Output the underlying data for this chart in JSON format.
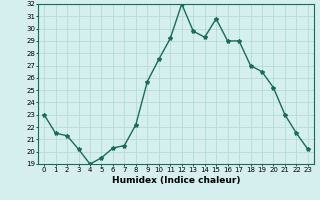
{
  "x": [
    0,
    1,
    2,
    3,
    4,
    5,
    6,
    7,
    8,
    9,
    10,
    11,
    12,
    13,
    14,
    15,
    16,
    17,
    18,
    19,
    20,
    21,
    22,
    23
  ],
  "y": [
    23.0,
    21.5,
    21.3,
    20.2,
    19.0,
    19.5,
    20.3,
    20.5,
    22.2,
    25.7,
    27.5,
    29.2,
    32.0,
    29.8,
    29.3,
    30.8,
    29.0,
    29.0,
    27.0,
    26.5,
    25.2,
    23.0,
    21.5,
    20.2
  ],
  "line_color": "#1a6b5a",
  "marker": "*",
  "marker_size": 3,
  "bg_color": "#d4efed",
  "grid_color": "#aed8d4",
  "xlabel": "Humidex (Indice chaleur)",
  "xlim": [
    -0.5,
    23.5
  ],
  "ylim": [
    19,
    32
  ],
  "yticks": [
    19,
    20,
    21,
    22,
    23,
    24,
    25,
    26,
    27,
    28,
    29,
    30,
    31,
    32
  ],
  "xticks": [
    0,
    1,
    2,
    3,
    4,
    5,
    6,
    7,
    8,
    9,
    10,
    11,
    12,
    13,
    14,
    15,
    16,
    17,
    18,
    19,
    20,
    21,
    22,
    23
  ],
  "tick_fontsize": 5,
  "xlabel_fontsize": 6.5,
  "linewidth": 1.0
}
